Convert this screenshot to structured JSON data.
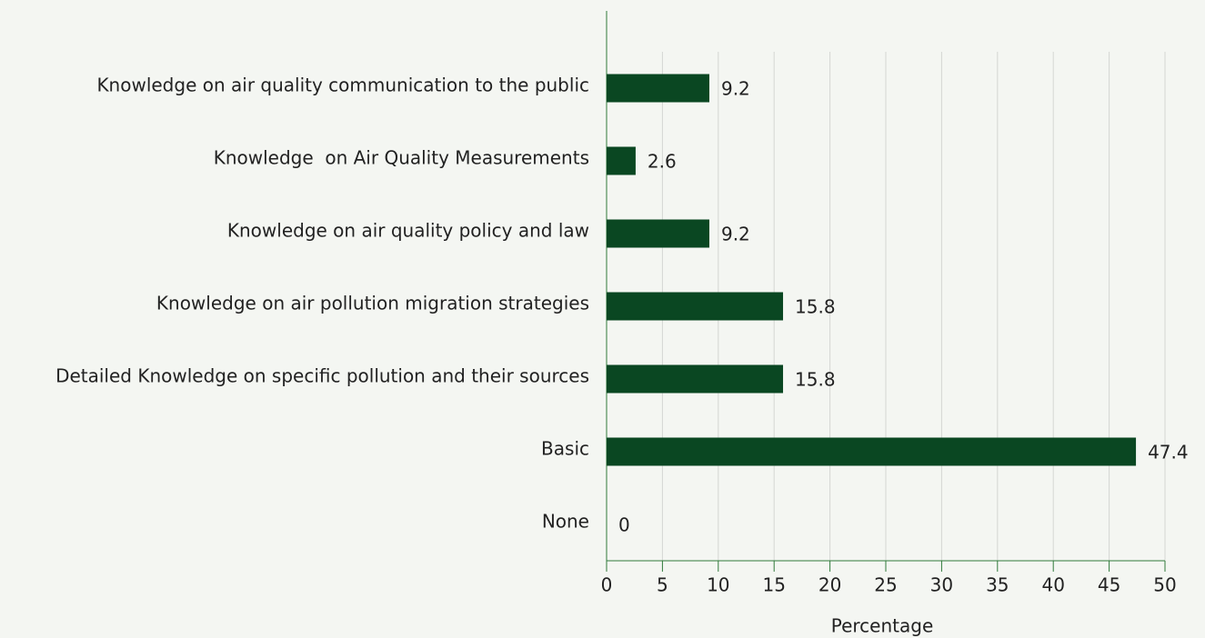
{
  "chart_data": {
    "type": "bar",
    "orientation": "horizontal",
    "categories": [
      "Knowledge on air quality communication to the public",
      "Knowledge  on Air Quality Measurements",
      "Knowledge on air quality policy and law",
      "Knowledge on air pollution migration strategies",
      "Detailed Knowledge on specific pollution and their sources",
      "Basic",
      "None"
    ],
    "values": [
      9.2,
      2.6,
      9.2,
      15.8,
      15.8,
      47.4,
      0
    ],
    "color": "#0a4722",
    "xlabel": "Percentage",
    "xlim": [
      0,
      50
    ],
    "xticks": [
      0,
      5,
      10,
      15,
      20,
      25,
      30,
      35,
      40,
      45,
      50
    ],
    "grid": true
  }
}
